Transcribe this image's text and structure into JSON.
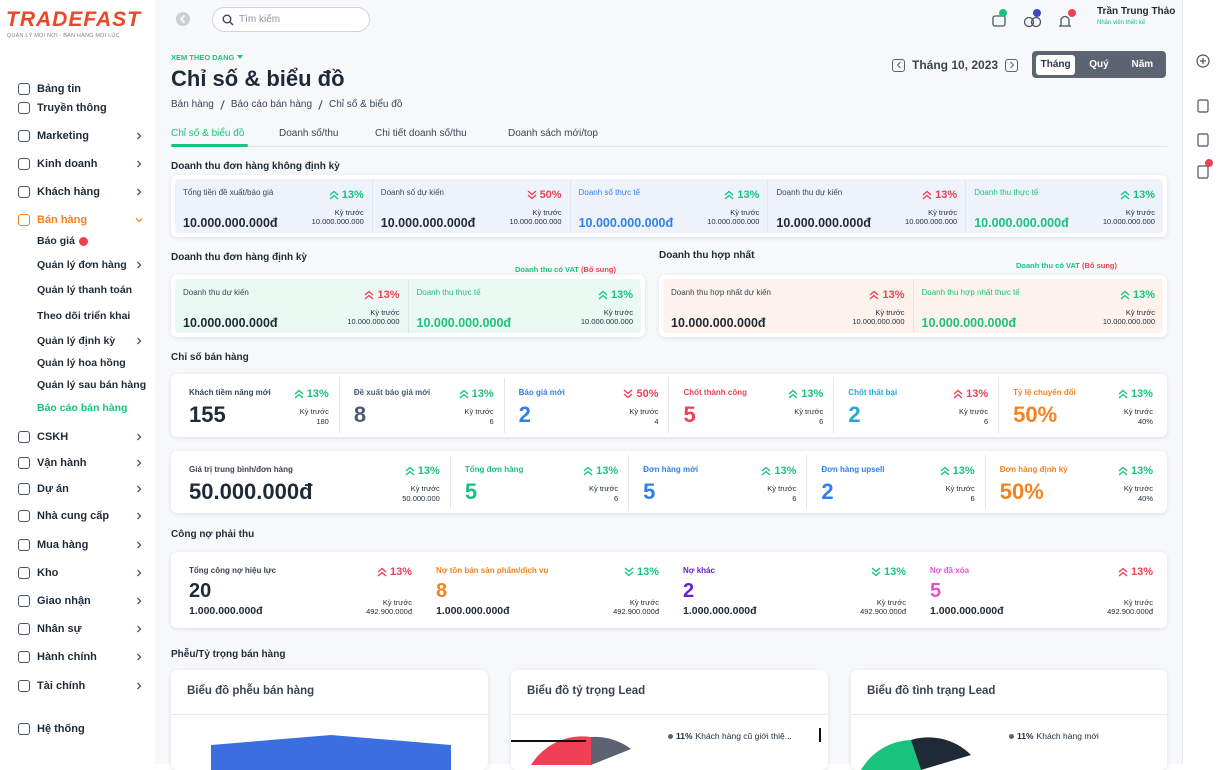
{
  "sidebar": {
    "logo": "TRADEFAST",
    "tagline": "QUẢN LÝ MỌI NƠI - BÁN HÀNG MỌI LÚC",
    "menu": [
      {
        "label": "Bảng tin",
        "arrow": false
      },
      {
        "label": "Truyền thông",
        "arrow": false
      },
      {
        "label": "Marketing",
        "arrow": true
      },
      {
        "label": "Kinh doanh",
        "arrow": true
      },
      {
        "label": "Khách hàng",
        "arrow": true
      },
      {
        "label": "Bán hàng",
        "arrow": true,
        "expanded": true
      },
      {
        "label": "CSKH",
        "arrow": true
      },
      {
        "label": "Vận hành",
        "arrow": true
      },
      {
        "label": "Dự án",
        "arrow": true
      },
      {
        "label": "Nhà cung cấp",
        "arrow": true
      },
      {
        "label": "Mua hàng",
        "arrow": true
      },
      {
        "label": "Kho",
        "arrow": true
      },
      {
        "label": "Giao nhận",
        "arrow": true
      },
      {
        "label": "Nhân sự",
        "arrow": true
      },
      {
        "label": "Hành chính",
        "arrow": true
      },
      {
        "label": "Tài chính",
        "arrow": true
      }
    ],
    "submenu": [
      {
        "label": "Báo giá",
        "badge": true
      },
      {
        "label": "Quản lý đơn hàng",
        "arrow": true
      },
      {
        "label": "Quản lý thanh toán"
      },
      {
        "label": "Theo dõi triển khai"
      },
      {
        "label": "Quản lý định kỳ",
        "arrow": true
      },
      {
        "label": "Quản lý hoa hồng"
      },
      {
        "label": "Quản lý sau bán hàng"
      },
      {
        "label": "Báo cáo bán hàng",
        "active": true
      }
    ],
    "footer": "Hệ thống"
  },
  "topbar": {
    "search_placeholder": "Tìm kiếm",
    "user_name": "Trần Trung Thảo",
    "user_role": "Nhân viên thiết kế"
  },
  "header": {
    "view_label": "XEM THEO DẠNG",
    "title": "Chỉ số & biểu đồ",
    "breadcrumb": [
      "Bán hàng",
      "Báo cáo bán hàng",
      "Chỉ số & biểu đồ"
    ],
    "period": "Tháng 10, 2023",
    "period_options": [
      "Tháng",
      "Quý",
      "Năm"
    ],
    "active_period": 0
  },
  "tabs": {
    "items": [
      "Chỉ số & biểu đồ",
      "Doanh số/thu",
      "Chi tiết doanh số/thu",
      "Doanh sách mới/top"
    ],
    "active": 0
  },
  "prev_label": "Kỳ trước",
  "non_recurring": {
    "title": "Doanh thu đơn hàng không định kỳ",
    "cards": [
      {
        "label": "Tổng tiền đề xuất/báo giá",
        "change": "13%",
        "trend": "up",
        "change_color": "#19c37d",
        "prev": "10.000.000.000",
        "value": "10.000.000.000đ"
      },
      {
        "label": "Doanh số dự kiến",
        "change": "50%",
        "trend": "down",
        "change_color": "#ef4056",
        "prev": "10.000.000.000",
        "value": "10.000.000.000đ"
      },
      {
        "label": "Doanh số thực tế",
        "color": "#2f80ed",
        "change": "13%",
        "trend": "up",
        "change_color": "#19c37d",
        "prev": "10.000.000.000",
        "value": "10.000.000.000đ"
      },
      {
        "label": "Doanh thu dự kiến",
        "change": "13%",
        "trend": "up",
        "change_color": "#ef4056",
        "prev": "10.000.000.000",
        "value": "10.000.000.000đ"
      },
      {
        "label": "Doanh thu thực tế",
        "color": "#19c37d",
        "change": "13%",
        "trend": "up",
        "change_color": "#19c37d",
        "prev": "10.000.000.000",
        "value": "10.000.000.000đ"
      }
    ]
  },
  "recurring": {
    "title": "Doanh thu đơn hàng định kỳ",
    "note": "Doanh thu có VAT",
    "note_extra": "(Bổ sung)",
    "cards": [
      {
        "label": "Doanh thu dự kiến",
        "change": "13%",
        "trend": "up",
        "change_color": "#ef4056",
        "prev": "10.000.000.000",
        "value": "10.000.000.000đ"
      },
      {
        "label": "Doanh thu thực tế",
        "color": "#19c37d",
        "change": "13%",
        "trend": "up",
        "change_color": "#19c37d",
        "prev": "10.000.000.000",
        "value": "10.000.000.000đ"
      }
    ]
  },
  "consolidated": {
    "title": "Doanh thu hợp nhất",
    "note": "Doanh thu có VAT",
    "note_extra": "(Bổ sung)",
    "cards": [
      {
        "label": "Doanh thu hợp nhất dự kiến",
        "change": "13%",
        "trend": "up",
        "change_color": "#ef4056",
        "prev": "10.000.000.000",
        "value": "10.000.000.000đ"
      },
      {
        "label": "Doanh thu hợp nhất thực tế",
        "color": "#19c37d",
        "change": "13%",
        "trend": "up",
        "change_color": "#19c37d",
        "prev": "10.000.000.000",
        "value": "10.000.000.000đ"
      }
    ]
  },
  "sales_index": {
    "title": "Chỉ số bán hàng",
    "rows": [
      [
        {
          "label": "Khách tiềm năng mới",
          "change": "13%",
          "trend": "up",
          "change_color": "#19c37d",
          "prev": "180",
          "value": "155"
        },
        {
          "label": "Đề xuất báo giá mới",
          "color": "#4a5a70",
          "change": "13%",
          "trend": "up",
          "change_color": "#19c37d",
          "prev": "6",
          "value": "8"
        },
        {
          "label": "Báo giá mới",
          "color": "#2f80ed",
          "change": "50%",
          "trend": "down",
          "change_color": "#ef4056",
          "prev": "4",
          "value": "2"
        },
        {
          "label": "Chốt thành công",
          "color": "#ef4056",
          "change": "13%",
          "trend": "up",
          "change_color": "#19c37d",
          "prev": "6",
          "value": "5"
        },
        {
          "label": "Chốt thất bại",
          "color": "#26a7d8",
          "change": "13%",
          "trend": "up",
          "change_color": "#ef4056",
          "prev": "6",
          "value": "2"
        },
        {
          "label": "Tỷ lệ chuyển đổi",
          "color": "#f5821f",
          "change": "13%",
          "trend": "up",
          "change_color": "#19c37d",
          "prev": "40%",
          "value": "50%"
        }
      ],
      [
        {
          "label": "Giá trị trung bình/đơn hàng",
          "change": "13%",
          "trend": "up",
          "change_color": "#19c37d",
          "prev": "50.000.000",
          "value": "50.000.000đ"
        },
        {
          "label": "Tổng đơn hàng",
          "color": "#19c37d",
          "change": "13%",
          "trend": "up",
          "change_color": "#19c37d",
          "prev": "6",
          "value": "5"
        },
        {
          "label": "Đơn hàng mới",
          "color": "#2f80ed",
          "change": "13%",
          "trend": "up",
          "change_color": "#19c37d",
          "prev": "6",
          "value": "5"
        },
        {
          "label": "Đơn hàng upsell",
          "color": "#2f80ed",
          "change": "13%",
          "trend": "up",
          "change_color": "#19c37d",
          "prev": "6",
          "value": "2"
        },
        {
          "label": "Đơn hàng định kỳ",
          "color": "#f5821f",
          "change": "13%",
          "trend": "up",
          "change_color": "#19c37d",
          "prev": "40%",
          "value": "50%"
        }
      ]
    ]
  },
  "receivables": {
    "title": "Công nợ phải thu",
    "cards": [
      {
        "label": "Tổng công nợ hiệu lực",
        "change": "13%",
        "trend": "up",
        "change_color": "#ef4056",
        "prev": "492.900.000đ",
        "value": "20",
        "amount": "1.000.000.000đ"
      },
      {
        "label": "Nợ tồn bán sản phẩm/dịch vụ",
        "color": "#f5821f",
        "change": "13%",
        "trend": "down",
        "change_color": "#19c37d",
        "prev": "492.900.000đ",
        "value": "8",
        "amount": "1.000.000.000đ"
      },
      {
        "label": "Nợ khác",
        "color": "#6a1fd1",
        "change": "13%",
        "trend": "down",
        "change_color": "#19c37d",
        "prev": "492.900.000đ",
        "value": "2",
        "amount": "1.000.000.000đ"
      },
      {
        "label": "Nợ đã xóa",
        "color": "#e94fd5",
        "change": "13%",
        "trend": "up",
        "change_color": "#ef4056",
        "prev": "492.900.000đ",
        "value": "5",
        "amount": "1.000.000.000đ"
      }
    ]
  },
  "charts": {
    "title": "Phễu/Tỷ trọng bán hàng",
    "cards": [
      {
        "title": "Biểu đồ phễu bán hàng"
      },
      {
        "title": "Biểu đồ tỷ trọng Lead",
        "legend": [
          {
            "share": "11%",
            "label": "Khách hàng cũ giới thiệ..."
          }
        ]
      },
      {
        "title": "Biểu đồ tình trạng Lead",
        "legend": [
          {
            "share": "11%",
            "label": "Khách hàng mới"
          }
        ]
      }
    ]
  }
}
